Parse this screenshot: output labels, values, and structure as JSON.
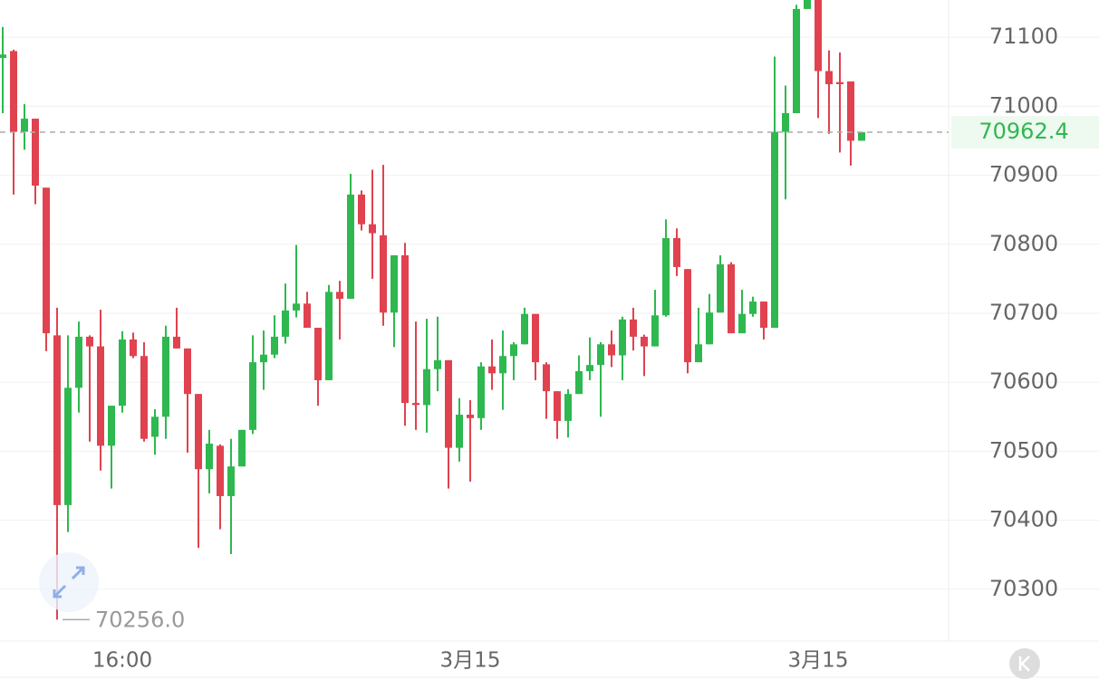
{
  "chart_data": {
    "type": "candlestick",
    "categories": [
      null,
      null,
      null,
      null,
      null,
      null,
      null,
      null,
      null,
      null,
      null,
      "16:00",
      null,
      null,
      null,
      null,
      null,
      null,
      null,
      null,
      null,
      null,
      null,
      null,
      null,
      null,
      null,
      null,
      null,
      null,
      null,
      null,
      null,
      null,
      null,
      null,
      null,
      null,
      null,
      null,
      null,
      null,
      null,
      "3月15",
      null,
      null,
      null,
      null,
      null,
      null,
      null,
      null,
      null,
      null,
      null,
      null,
      null,
      null,
      null,
      null,
      null,
      null,
      null,
      null,
      null,
      null,
      null,
      null,
      null,
      null,
      null,
      null,
      null,
      null,
      null,
      "3月15",
      null,
      null,
      null,
      null
    ],
    "open": [
      71070,
      71080,
      70963,
      70982,
      70882,
      70668,
      70422,
      70592,
      70666,
      70652,
      70508,
      70566,
      70662,
      70638,
      70521,
      70550,
      70666,
      70649,
      70583,
      70474,
      70508,
      70435,
      70478,
      70531,
      70629,
      70640,
      70666,
      70704,
      70714,
      70679,
      70603,
      70731,
      70721,
      70872,
      70829,
      70813,
      70701,
      70784,
      70570,
      70567,
      70619,
      70632,
      70505,
      70553,
      70548,
      70623,
      70613,
      70638,
      70655,
      70699,
      70626,
      70587,
      70544,
      70583,
      70616,
      70625,
      70655,
      70639,
      70691,
      70666,
      70652,
      70697,
      70809,
      70764,
      70629,
      70655,
      70701,
      70771,
      70671,
      70699,
      70717,
      70679,
      70963,
      70990,
      71141,
      71160,
      71051,
      71035,
      71036,
      70950
    ],
    "high": [
      71115,
      71082,
      71003,
      70982,
      70882,
      70708,
      70668,
      70688,
      70668,
      70705,
      70566,
      70674,
      70672,
      70658,
      70561,
      70682,
      70708,
      70649,
      70583,
      70531,
      70510,
      70518,
      70531,
      70668,
      70675,
      70697,
      70743,
      70799,
      70731,
      70679,
      70741,
      70747,
      70902,
      70878,
      70908,
      70915,
      70784,
      70802,
      70688,
      70692,
      70695,
      70632,
      70577,
      70574,
      70629,
      70662,
      70675,
      70658,
      70708,
      70699,
      70629,
      70587,
      70590,
      70639,
      70665,
      70658,
      70675,
      70695,
      70708,
      70669,
      70734,
      70836,
      70823,
      70764,
      70708,
      70728,
      70784,
      70774,
      70734,
      70724,
      70717,
      71072,
      71030,
      71147,
      71170,
      71160,
      71081,
      71078,
      71036,
      70963
    ],
    "low": [
      70990,
      70872,
      70937,
      70858,
      70645,
      70256,
      70383,
      70556,
      70514,
      70472,
      70446,
      70556,
      70635,
      70514,
      70495,
      70518,
      70649,
      70498,
      70360,
      70439,
      70387,
      70351,
      70478,
      70525,
      70589,
      70635,
      70656,
      70694,
      70679,
      70566,
      70603,
      70662,
      70721,
      70820,
      70750,
      70682,
      70651,
      70537,
      70531,
      70527,
      70587,
      70446,
      70485,
      70456,
      70531,
      70589,
      70560,
      70603,
      70655,
      70603,
      70547,
      70518,
      70520,
      70583,
      70603,
      70550,
      70622,
      70603,
      70646,
      70609,
      70652,
      70695,
      70754,
      70613,
      70629,
      70655,
      70701,
      70671,
      70671,
      70695,
      70662,
      70679,
      70865,
      70990,
      71141,
      70983,
      70960,
      70933,
      70914,
      70950
    ],
    "close": [
      71075,
      70963,
      70982,
      70885,
      70671,
      70422,
      70592,
      70666,
      70652,
      70508,
      70566,
      70662,
      70638,
      70518,
      70550,
      70666,
      70649,
      70583,
      70474,
      70511,
      70435,
      70478,
      70531,
      70629,
      70640,
      70666,
      70704,
      70714,
      70679,
      70603,
      70731,
      70721,
      70872,
      70829,
      70816,
      70701,
      70784,
      70570,
      70567,
      70619,
      70632,
      70505,
      70553,
      70548,
      70623,
      70613,
      70638,
      70655,
      70699,
      70629,
      70587,
      70544,
      70583,
      70616,
      70625,
      70655,
      70639,
      70691,
      70666,
      70652,
      70697,
      70809,
      70767,
      70629,
      70655,
      70701,
      70771,
      70671,
      70699,
      70717,
      70679,
      70963,
      70990,
      71141,
      71154,
      71051,
      71032,
      71032,
      70950,
      70962.4
    ],
    "up_color": "#2eb84f",
    "down_color": "#e0424f",
    "ylim": [
      70225,
      71154
    ],
    "yticks": [
      70300,
      70400,
      70500,
      70600,
      70700,
      70800,
      70900,
      71000,
      71100
    ],
    "grid": true,
    "last_price": 70962.4,
    "low_label": {
      "value": 70256,
      "label": "70256.0"
    }
  }
}
